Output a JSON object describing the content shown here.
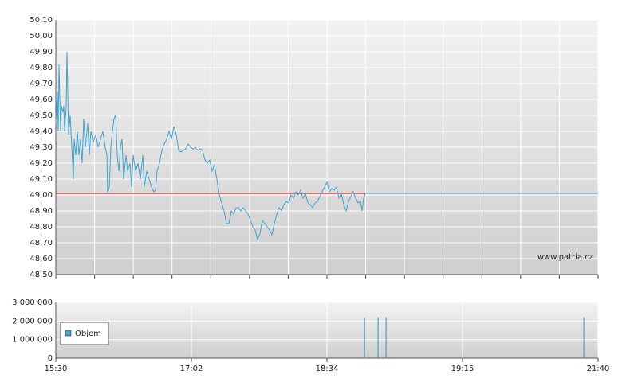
{
  "chart_data": [
    {
      "type": "line",
      "x": [
        0,
        2,
        3,
        4,
        6,
        7,
        9,
        10,
        11,
        13,
        14,
        16,
        18,
        20,
        22,
        23,
        25,
        27,
        29,
        31,
        33,
        35,
        37,
        40,
        42,
        44,
        47,
        50,
        53,
        56,
        59,
        62,
        64,
        65,
        67,
        69,
        71,
        73,
        75,
        77,
        79,
        81,
        83,
        85,
        88,
        90,
        93,
        95,
        97,
        100,
        103,
        106,
        109,
        111,
        114,
        117,
        120,
        123,
        125,
        127,
        130,
        133,
        136,
        139,
        142,
        145,
        148,
        151,
        154,
        157,
        160,
        163,
        166,
        169,
        172,
        175,
        178,
        181,
        184,
        187,
        190,
        193,
        196,
        199,
        202,
        205,
        208,
        211,
        214,
        217,
        220,
        223,
        226,
        229,
        232,
        235,
        238,
        241,
        244,
        247,
        250,
        253,
        256,
        259,
        262,
        265,
        268,
        271,
        274,
        277,
        280,
        283,
        286,
        289,
        292,
        295,
        298,
        301,
        304,
        307,
        310,
        313,
        316,
        319,
        322,
        325,
        328,
        331,
        334,
        337,
        340,
        343,
        346,
        349,
        352,
        355,
        358,
        361,
        364,
        367,
        370,
        373,
        376,
        379,
        382,
        384,
        386,
        388,
        680
      ],
      "values": [
        49.45,
        49.65,
        49.4,
        49.82,
        49.4,
        49.56,
        49.52,
        49.56,
        49.4,
        49.55,
        49.9,
        49.38,
        49.5,
        49.3,
        49.1,
        49.35,
        49.25,
        49.4,
        49.25,
        49.35,
        49.2,
        49.48,
        49.3,
        49.45,
        49.25,
        49.4,
        49.33,
        49.38,
        49.3,
        49.35,
        49.4,
        49.3,
        49.25,
        49.01,
        49.05,
        49.3,
        49.4,
        49.48,
        49.5,
        49.25,
        49.15,
        49.3,
        49.35,
        49.1,
        49.25,
        49.15,
        49.2,
        49.05,
        49.25,
        49.15,
        49.2,
        49.1,
        49.25,
        49.05,
        49.15,
        49.1,
        49.05,
        49.02,
        49.03,
        49.15,
        49.2,
        49.28,
        49.32,
        49.35,
        49.4,
        49.35,
        49.43,
        49.38,
        49.28,
        49.27,
        49.28,
        49.29,
        49.32,
        49.3,
        49.29,
        49.3,
        49.28,
        49.29,
        49.28,
        49.22,
        49.2,
        49.22,
        49.15,
        49.19,
        49.1,
        49.0,
        48.95,
        48.9,
        48.82,
        48.82,
        48.9,
        48.88,
        48.92,
        48.92,
        48.9,
        48.92,
        48.9,
        48.88,
        48.84,
        48.8,
        48.78,
        48.72,
        48.76,
        48.84,
        48.82,
        48.8,
        48.78,
        48.75,
        48.82,
        48.88,
        48.92,
        48.9,
        48.94,
        48.96,
        48.95,
        49.0,
        48.98,
        49.02,
        49.0,
        49.03,
        48.98,
        49.01,
        48.95,
        48.94,
        48.92,
        48.95,
        48.96,
        48.99,
        49.02,
        49.05,
        49.08,
        49.02,
        49.04,
        49.03,
        49.05,
        48.98,
        49.01,
        48.94,
        48.9,
        48.96,
        48.99,
        49.02,
        48.98,
        48.95,
        48.96,
        48.9,
        48.98,
        49.01,
        49.01
      ],
      "color": "#3fa3cf",
      "reference_value": 49.01,
      "reference_color": "#cc0000",
      "xlim": [
        0,
        680
      ],
      "xticks": [
        0,
        48.6,
        97.1,
        145.7,
        194.3,
        242.9,
        291.4,
        340,
        388.6,
        437.1,
        485.7,
        534.3,
        582.9,
        631.4,
        680
      ],
      "ylim": [
        48.5,
        50.1
      ],
      "yticks": [
        {
          "value": 48.5,
          "label": "48,50"
        },
        {
          "value": 48.6,
          "label": "48,60"
        },
        {
          "value": 48.7,
          "label": "48,70"
        },
        {
          "value": 48.8,
          "label": "48,80"
        },
        {
          "value": 48.9,
          "label": "48,90"
        },
        {
          "value": 49.0,
          "label": "49,00"
        },
        {
          "value": 49.1,
          "label": "49,10"
        },
        {
          "value": 49.2,
          "label": "49,20"
        },
        {
          "value": 49.3,
          "label": "49,30"
        },
        {
          "value": 49.4,
          "label": "49,40"
        },
        {
          "value": 49.5,
          "label": "49,50"
        },
        {
          "value": 49.6,
          "label": "49,60"
        },
        {
          "value": 49.7,
          "label": "49,70"
        },
        {
          "value": 49.8,
          "label": "49,80"
        },
        {
          "value": 49.9,
          "label": "49,90"
        },
        {
          "value": 50.0,
          "label": "50,00"
        },
        {
          "value": 50.1,
          "label": "50,10"
        }
      ],
      "grid": true,
      "watermark": "www.patria.cz"
    },
    {
      "type": "bar",
      "series": [
        {
          "name": "Objem",
          "color": "#3fa3cf",
          "x": [
            387,
            404,
            414,
            662
          ],
          "values": [
            2200000,
            2200000,
            2200000,
            2200000
          ]
        }
      ],
      "xlim": [
        0,
        680
      ],
      "xticks": [
        {
          "value": 0,
          "label": "15:30"
        },
        {
          "value": 170,
          "label": "17:02"
        },
        {
          "value": 340,
          "label": "18:34"
        },
        {
          "value": 510,
          "label": "19:15"
        },
        {
          "value": 680,
          "label": "21:40"
        }
      ],
      "ylim": [
        0,
        3000000
      ],
      "yticks": [
        0,
        {
          "value": 1000000,
          "label": "1 000 000"
        },
        {
          "value": 2000000,
          "label": "2 000 000"
        },
        {
          "value": 3000000,
          "label": "3 000 000"
        }
      ],
      "grid": true,
      "legend": "bottom-left"
    }
  ]
}
